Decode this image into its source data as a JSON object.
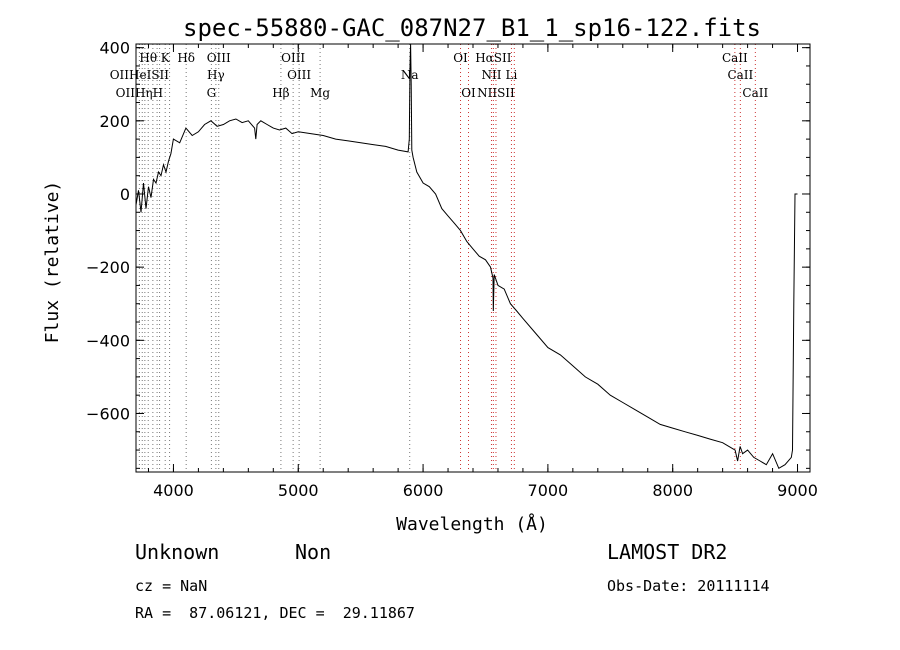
{
  "chart_data": {
    "type": "line",
    "title": "spec-55880-GAC_087N27_B1_1_sp16-122.fits",
    "xlabel": "Wavelength (Å)",
    "ylabel": "Flux (relative)",
    "xlim": [
      3700,
      9100
    ],
    "ylim": [
      -760,
      410
    ],
    "xticks": [
      4000,
      5000,
      6000,
      7000,
      8000,
      9000
    ],
    "yticks": [
      -600,
      -400,
      -200,
      0,
      200,
      400
    ],
    "grid": false,
    "series": [
      {
        "x": [
          3700,
          3720,
          3740,
          3760,
          3780,
          3800,
          3820,
          3840,
          3860,
          3880,
          3900,
          3920,
          3940,
          3960,
          3980,
          4000,
          4050,
          4100,
          4150,
          4200,
          4250,
          4300,
          4350,
          4400,
          4450,
          4500,
          4550,
          4600,
          4650,
          4660,
          4670,
          4700,
          4750,
          4800,
          4850,
          4900,
          4950,
          5000,
          5100,
          5200,
          5300,
          5400,
          5500,
          5600,
          5700,
          5800,
          5880,
          5890,
          5895,
          5900,
          5905,
          5910,
          5920,
          5950,
          6000,
          6050,
          6100,
          6150,
          6200,
          6250,
          6300,
          6350,
          6400,
          6450,
          6500,
          6540,
          6560,
          6563,
          6570,
          6600,
          6650,
          6700,
          6750,
          6800,
          6900,
          7000,
          7100,
          7200,
          7300,
          7400,
          7500,
          7600,
          7700,
          7800,
          7900,
          8000,
          8100,
          8200,
          8300,
          8400,
          8450,
          8500,
          8520,
          8540,
          8560,
          8600,
          8650,
          8700,
          8750,
          8800,
          8850,
          8900,
          8950,
          8960,
          8970,
          8980,
          8990,
          9000
        ],
        "y": [
          -30,
          10,
          -50,
          30,
          -40,
          20,
          -10,
          40,
          30,
          60,
          50,
          80,
          60,
          90,
          110,
          150,
          140,
          180,
          160,
          170,
          190,
          200,
          185,
          190,
          200,
          205,
          195,
          200,
          180,
          150,
          190,
          200,
          190,
          180,
          175,
          180,
          165,
          170,
          165,
          160,
          150,
          145,
          140,
          135,
          130,
          120,
          115,
          150,
          350,
          410,
          300,
          120,
          100,
          60,
          30,
          20,
          0,
          -40,
          -60,
          -80,
          -100,
          -130,
          -150,
          -170,
          -180,
          -200,
          -230,
          -320,
          -220,
          -250,
          -260,
          -300,
          -320,
          -340,
          -380,
          -420,
          -440,
          -470,
          -500,
          -520,
          -550,
          -570,
          -590,
          -610,
          -630,
          -640,
          -650,
          -660,
          -670,
          -680,
          -690,
          -700,
          -730,
          -690,
          -710,
          -700,
          -720,
          -730,
          -740,
          -710,
          -750,
          -740,
          -720,
          -700,
          -300,
          0,
          0,
          0
        ]
      }
    ],
    "line_annotations": [
      {
        "text": "Hθ",
        "x": 3798,
        "row": 0
      },
      {
        "text": "K",
        "x": 3934,
        "row": 0
      },
      {
        "text": "Hδ",
        "x": 4102,
        "row": 0
      },
      {
        "text": "OIII",
        "x": 4363,
        "row": 0
      },
      {
        "text": "OIII",
        "x": 4959,
        "row": 0
      },
      {
        "text": "OI",
        "x": 6300,
        "row": 0
      },
      {
        "text": "HαSII",
        "x": 6563,
        "row": 0
      },
      {
        "text": "CaII",
        "x": 8498,
        "row": 0
      },
      {
        "text": "OIIHeISII",
        "x": 3727,
        "row": 1
      },
      {
        "text": "Hγ",
        "x": 4340,
        "row": 1
      },
      {
        "text": "OIII",
        "x": 5007,
        "row": 1
      },
      {
        "text": "Na",
        "x": 5893,
        "row": 1
      },
      {
        "text": "NII",
        "x": 6548,
        "row": 1
      },
      {
        "text": "Li",
        "x": 6708,
        "row": 1
      },
      {
        "text": "CaII",
        "x": 8542,
        "row": 1
      },
      {
        "text": "OIIHηH",
        "x": 3727,
        "row": 2
      },
      {
        "text": "G",
        "x": 4304,
        "row": 2
      },
      {
        "text": "Hβ",
        "x": 4861,
        "row": 2
      },
      {
        "text": "Mg",
        "x": 5175,
        "row": 2
      },
      {
        "text": "OI",
        "x": 6364,
        "row": 2
      },
      {
        "text": "NIISII",
        "x": 6584,
        "row": 2
      },
      {
        "text": "CaII",
        "x": 8662,
        "row": 2
      }
    ],
    "black_line_markers": [
      3727,
      3750,
      3771,
      3798,
      3835,
      3869,
      3889,
      3934,
      3969,
      4102,
      4304,
      4340,
      4363,
      4861,
      4959,
      5007,
      5175,
      5893
    ],
    "red_line_markers": [
      6300,
      6364,
      6548,
      6563,
      6584,
      6708,
      6731,
      8498,
      8542,
      8662
    ],
    "colors": {
      "line": "#000000",
      "marker_black": "#777777",
      "marker_red": "#cc3333"
    }
  },
  "info": {
    "class": "Unknown",
    "subclass": "Non",
    "survey": "LAMOST DR2",
    "cz": "cz = NaN",
    "obs_date": "Obs-Date: 20111114",
    "radec": "RA =  87.06121, DEC =  29.11867"
  }
}
